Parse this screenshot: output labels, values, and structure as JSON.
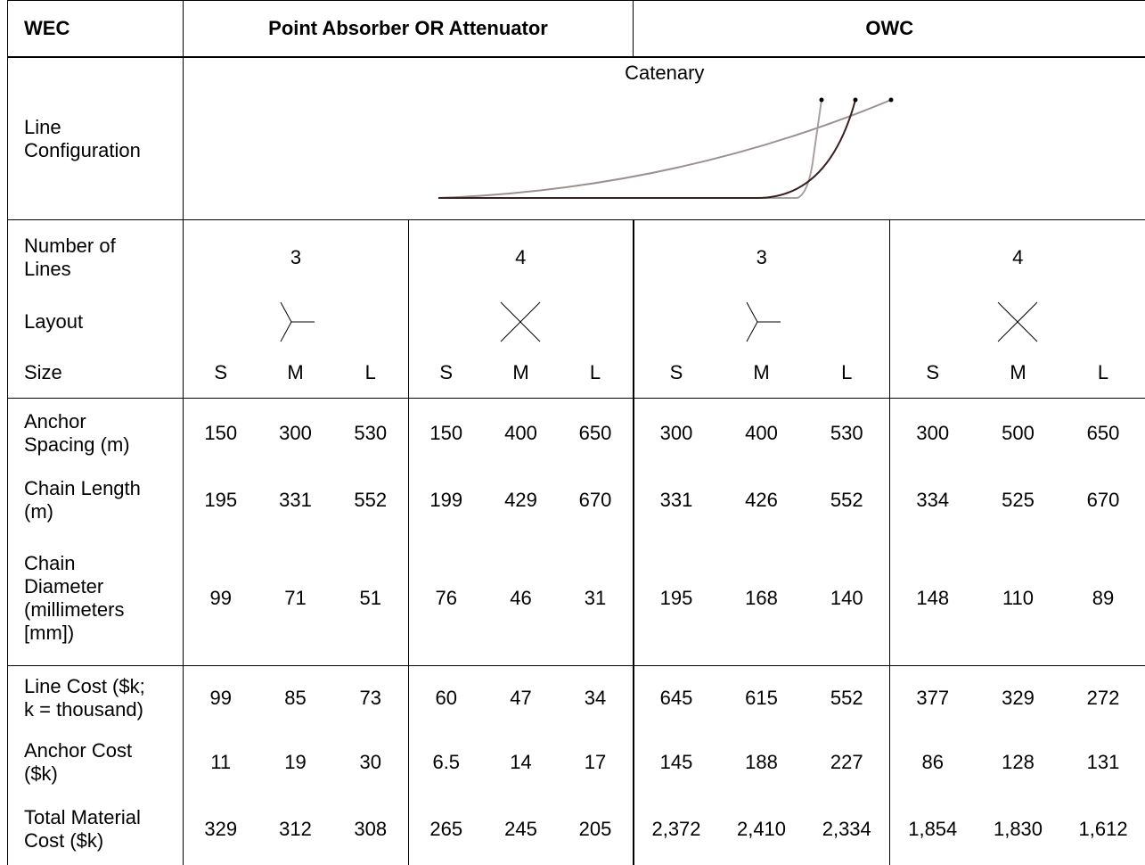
{
  "header": {
    "first": "WEC",
    "groups": [
      "Point Absorber OR Attenuator",
      "OWC"
    ]
  },
  "line_configuration": {
    "label": "Line Configuration",
    "caption": "Catenary"
  },
  "number_of_lines": {
    "label": "Number of Lines",
    "values": [
      "3",
      "4",
      "3",
      "4"
    ]
  },
  "layout": {
    "label": "Layout"
  },
  "size": {
    "label": "Size",
    "values": [
      "S",
      "M",
      "L",
      "S",
      "M",
      "L",
      "S",
      "M",
      "L",
      "S",
      "M",
      "L"
    ]
  },
  "rows": [
    {
      "label": "Anchor Spacing (m)",
      "values": [
        "150",
        "300",
        "530",
        "150",
        "400",
        "650",
        "300",
        "400",
        "530",
        "300",
        "500",
        "650"
      ]
    },
    {
      "label": "Chain Length (m)",
      "values": [
        "195",
        "331",
        "552",
        "199",
        "429",
        "670",
        "331",
        "426",
        "552",
        "334",
        "525",
        "670"
      ]
    },
    {
      "label": "Chain Diameter (millimeters [mm])",
      "values": [
        "99",
        "71",
        "51",
        "76",
        "46",
        "31",
        "195",
        "168",
        "140",
        "148",
        "110",
        "89"
      ]
    },
    {
      "label": "Line Cost ($k; k = thousand)",
      "values": [
        "99",
        "85",
        "73",
        "60",
        "47",
        "34",
        "645",
        "615",
        "552",
        "377",
        "329",
        "272"
      ]
    },
    {
      "label": "Anchor Cost ($k)",
      "values": [
        "11",
        "19",
        "30",
        "6.5",
        "14",
        "17",
        "145",
        "188",
        "227",
        "86",
        "128",
        "131"
      ]
    },
    {
      "label": "Total Material Cost ($k)",
      "values": [
        "329",
        "312",
        "308",
        "265",
        "245",
        "205",
        "2,372",
        "2,410",
        "2,334",
        "1,854",
        "1,830",
        "1,612"
      ]
    }
  ]
}
